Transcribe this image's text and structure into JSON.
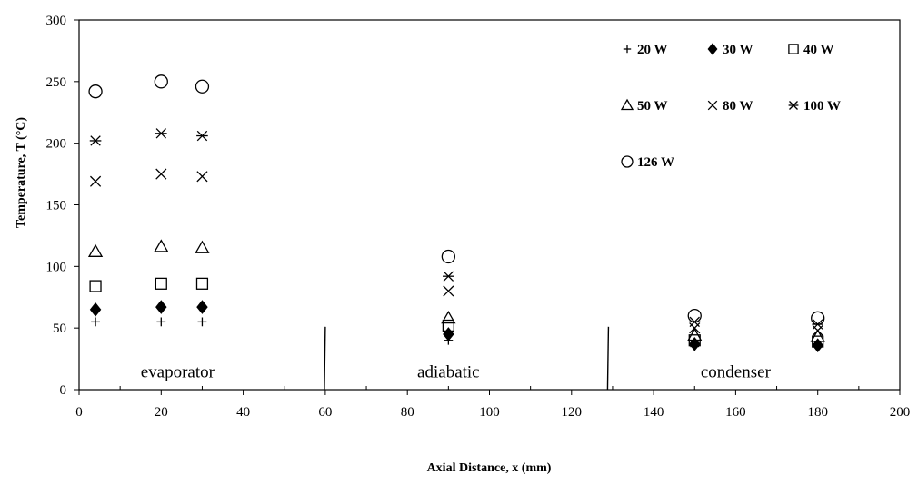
{
  "chart_data": {
    "type": "scatter",
    "title": "",
    "xlabel": "Axial Distance, x (mm)",
    "ylabel": "Temperature, T (°C)",
    "xlim": [
      0,
      200
    ],
    "ylim": [
      0,
      300
    ],
    "xticks": [
      0,
      20,
      40,
      60,
      80,
      100,
      120,
      140,
      160,
      180,
      200
    ],
    "yticks": [
      0,
      50,
      100,
      150,
      200,
      250,
      300
    ],
    "grid": false,
    "legend_position": "top-right",
    "regions": [
      {
        "label": "evaporator",
        "x": 24
      },
      {
        "label": "adiabatic",
        "x": 90
      },
      {
        "label": "condenser",
        "x": 160
      }
    ],
    "dividers": [
      60,
      129
    ],
    "series": [
      {
        "name": "20 W",
        "marker": "plus",
        "points": [
          [
            4,
            55
          ],
          [
            20,
            55
          ],
          [
            30,
            55
          ],
          [
            90,
            40
          ],
          [
            150,
            35
          ],
          [
            180,
            35
          ]
        ]
      },
      {
        "name": "30 W",
        "marker": "diamond-filled",
        "points": [
          [
            4,
            65
          ],
          [
            20,
            67
          ],
          [
            30,
            67
          ],
          [
            90,
            45
          ],
          [
            150,
            37
          ],
          [
            180,
            36
          ]
        ]
      },
      {
        "name": "40 W",
        "marker": "square",
        "points": [
          [
            4,
            84
          ],
          [
            20,
            86
          ],
          [
            30,
            86
          ],
          [
            90,
            52
          ],
          [
            150,
            40
          ],
          [
            180,
            39
          ]
        ]
      },
      {
        "name": "50 W",
        "marker": "triangle",
        "points": [
          [
            4,
            112
          ],
          [
            20,
            116
          ],
          [
            30,
            115
          ],
          [
            90,
            58
          ],
          [
            150,
            44
          ],
          [
            180,
            43
          ]
        ]
      },
      {
        "name": "80 W",
        "marker": "x",
        "points": [
          [
            4,
            169
          ],
          [
            20,
            175
          ],
          [
            30,
            173
          ],
          [
            90,
            80
          ],
          [
            150,
            50
          ],
          [
            180,
            48
          ]
        ]
      },
      {
        "name": "100 W",
        "marker": "asterisk",
        "points": [
          [
            4,
            202
          ],
          [
            20,
            208
          ],
          [
            30,
            206
          ],
          [
            90,
            92
          ],
          [
            150,
            55
          ],
          [
            180,
            53
          ]
        ]
      },
      {
        "name": "126 W",
        "marker": "circle",
        "points": [
          [
            4,
            242
          ],
          [
            20,
            250
          ],
          [
            30,
            246
          ],
          [
            90,
            108
          ],
          [
            150,
            60
          ],
          [
            180,
            58
          ]
        ]
      }
    ]
  }
}
